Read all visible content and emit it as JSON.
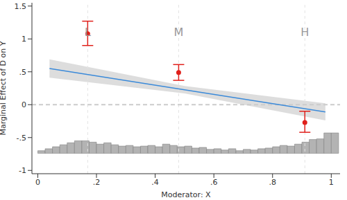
{
  "chart_data": {
    "type": "line",
    "x_label": "Moderator: X",
    "y_label": "Marginal Effect of D on Y",
    "xlim": [
      -0.02,
      1.03
    ],
    "xticks": [
      0,
      {
        "value": 0.2,
        "label": ".2"
      },
      {
        "value": 0.4,
        "label": ".4"
      },
      {
        "value": 0.6,
        "label": ".6"
      },
      {
        "value": 0.8,
        "label": ".8"
      },
      1
    ],
    "ylim": [
      -1.05,
      1.55
    ],
    "yticks": [
      -1,
      {
        "value": -0.5,
        "label": "-.5"
      },
      0,
      {
        "value": 0.5,
        "label": ".5"
      },
      1,
      1.5
    ],
    "grid": false,
    "zero_line": {
      "value": 0,
      "line_style": "dashed",
      "color": "#cccccc"
    },
    "series": [
      {
        "type": "area",
        "color": "#d9d9d9",
        "x": [
          0.04,
          0.5,
          0.98
        ],
        "lower": [
          0.41,
          0.17,
          -0.24
        ],
        "upper": [
          0.69,
          0.285,
          0.02
        ]
      },
      {
        "type": "line",
        "color": "#3b8ad9",
        "x": [
          0.04,
          0.5,
          0.98
        ],
        "values": [
          0.55,
          0.227,
          -0.11
        ]
      },
      {
        "type": "scatter",
        "color": "#e0201b",
        "marker": "circle",
        "labels": [
          "L",
          "M",
          "H"
        ],
        "x": [
          0.17,
          0.48,
          0.91
        ],
        "values": [
          1.08,
          0.49,
          -0.27
        ],
        "lower": [
          0.9,
          0.37,
          -0.42
        ],
        "upper": [
          1.27,
          0.61,
          -0.1
        ]
      },
      {
        "type": "histogram",
        "color": "#b3b3b3",
        "base": -0.74,
        "bins": [
          0,
          0.025,
          0.05,
          0.075,
          0.1,
          0.125,
          0.15,
          0.175,
          0.2,
          0.225,
          0.25,
          0.275,
          0.3,
          0.325,
          0.35,
          0.375,
          0.4,
          0.425,
          0.45,
          0.475,
          0.5,
          0.525,
          0.55,
          0.575,
          0.6,
          0.625,
          0.65,
          0.675,
          0.7,
          0.725,
          0.75,
          0.775,
          0.8,
          0.825,
          0.85,
          0.875,
          0.9,
          0.925,
          0.95,
          0.975,
          1.0,
          1.025
        ],
        "values": [
          -0.7,
          -0.67,
          -0.64,
          -0.61,
          -0.58,
          -0.55,
          -0.55,
          -0.57,
          -0.6,
          -0.58,
          -0.61,
          -0.63,
          -0.62,
          -0.64,
          -0.63,
          -0.62,
          -0.64,
          -0.6,
          -0.62,
          -0.64,
          -0.63,
          -0.66,
          -0.65,
          -0.68,
          -0.67,
          -0.69,
          -0.67,
          -0.7,
          -0.68,
          -0.69,
          -0.67,
          -0.66,
          -0.64,
          -0.62,
          -0.63,
          -0.6,
          -0.57,
          -0.53,
          -0.52,
          -0.43,
          -0.43
        ]
      }
    ]
  }
}
